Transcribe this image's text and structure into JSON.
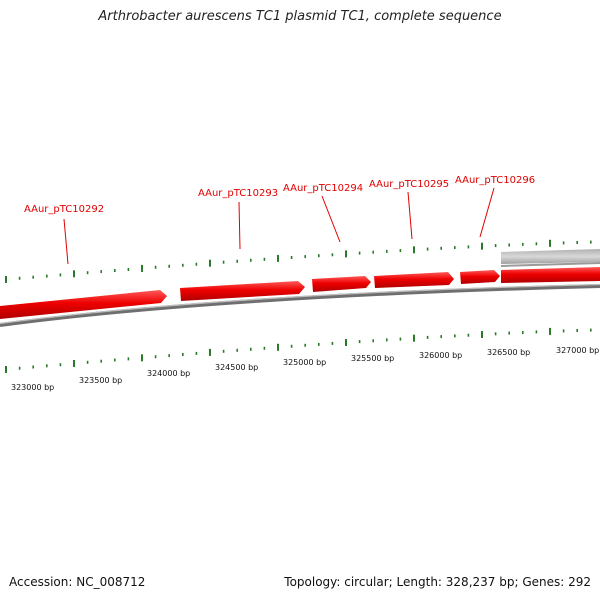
{
  "title": "Arthrobacter aurescens TC1 plasmid TC1, complete sequence",
  "footer": {
    "accession": "Accession: NC_008712",
    "summary": "Topology: circular; Length: 328,237 bp; Genes: 292"
  },
  "colors": {
    "gene": "#ee0000",
    "tick": "#2a7a2a",
    "backbone": "#808080",
    "label": "#e00000"
  },
  "genes": [
    {
      "label": "AAur_pTC10292"
    },
    {
      "label": "AAur_pTC10293"
    },
    {
      "label": "AAur_pTC10294"
    },
    {
      "label": "AAur_pTC10295"
    },
    {
      "label": "AAur_pTC10296"
    }
  ],
  "bp_labels": [
    "323000 bp",
    "323500 bp",
    "324000 bp",
    "324500 bp",
    "325000 bp",
    "325500 bp",
    "326000 bp",
    "326500 bp",
    "327000 bp"
  ]
}
